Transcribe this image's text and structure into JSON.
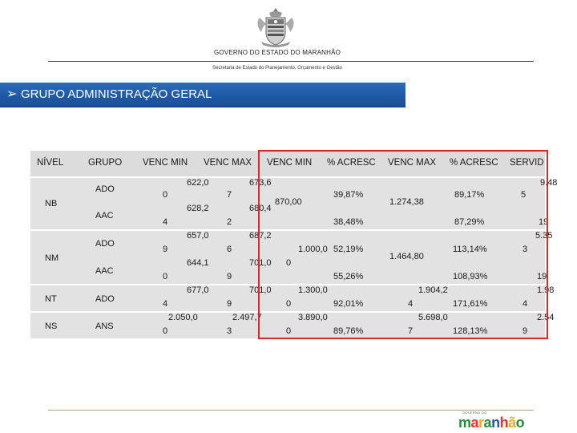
{
  "header": {
    "government": "GOVERNO DO ESTADO DO MARANHÃO",
    "secretaria": "Secretaria de Estado do Planejamento, Orçamento e Gestão"
  },
  "banner": {
    "bullet": "➢",
    "title": "GRUPO ADMINISTRAÇÃO GERAL"
  },
  "table": {
    "headers": {
      "nivel": "NÍVEL",
      "grupo": "GRUPO",
      "venc_min_1": "VENC MIN",
      "venc_max_1": "VENC MAX",
      "venc_min_2": "VENC MIN",
      "acresc_1": "% ACRESC",
      "venc_max_2": "VENC MAX",
      "acresc_2": "% ACRESC",
      "servid": "SERVID"
    },
    "niveis": {
      "nb": "NB",
      "nm": "NM",
      "nt": "NT",
      "ns": "NS"
    },
    "grupos": {
      "nb_1": "ADO",
      "nb_2": "AAC",
      "nm_1": "ADO",
      "nm_2": "AAC",
      "nt_1": "ADO",
      "ns_1": "ANS"
    },
    "cells": {
      "c1": "622,0",
      "c2": "673,6",
      "c3": "9.48",
      "c4": "0",
      "c5": "7",
      "c6": "39,87%",
      "c7": "89,17%",
      "c8": "870,00",
      "c9": "1.274,38",
      "c10": "5",
      "c11": "628,2",
      "c12": "680,4",
      "c13": "4",
      "c14": "2",
      "c15": "38,48%",
      "c16": "87,29%",
      "c17": "19",
      "c18": "657,0",
      "c19": "687,2",
      "c20": "5.35",
      "c21": "9",
      "c22": "6",
      "c23": "1.000,0",
      "c24": "52,19%",
      "c25": "113,14%",
      "c26": "3",
      "c27": "1.464,80",
      "c28": "644,1",
      "c29": "701,0",
      "c30": "0",
      "c31": "0",
      "c32": "9",
      "c33": "55,26%",
      "c34": "108,93%",
      "c35": "19",
      "c36": "677,0",
      "c37": "701,0",
      "c38": "1.300,0",
      "c39": "1.904,2",
      "c40": "1.98",
      "c41": "4",
      "c42": "9",
      "c43": "0",
      "c44": "92,01%",
      "c45": "4",
      "c46": "171,61%",
      "c47": "4",
      "c48": "2.050,0",
      "c49": "2.497,7",
      "c50": "3.890,0",
      "c51": "5.698,0",
      "c52": "2.54",
      "c53": "0",
      "c54": "3",
      "c55": "0",
      "c56": "89,76%",
      "c57": "7",
      "c58": "128,13%",
      "c59": "9"
    }
  },
  "footer": {
    "logo_small": "GOVERNO DO",
    "logo_letters": [
      "m",
      "a",
      "r",
      "a",
      "n",
      "h",
      "ã",
      "o"
    ],
    "logo_colors": [
      "#2a8a3a",
      "#e3342f",
      "#f2a81d",
      "#2a8a3a",
      "#1f5aa6",
      "#e3342f",
      "#f2a81d",
      "#2a8a3a"
    ]
  }
}
